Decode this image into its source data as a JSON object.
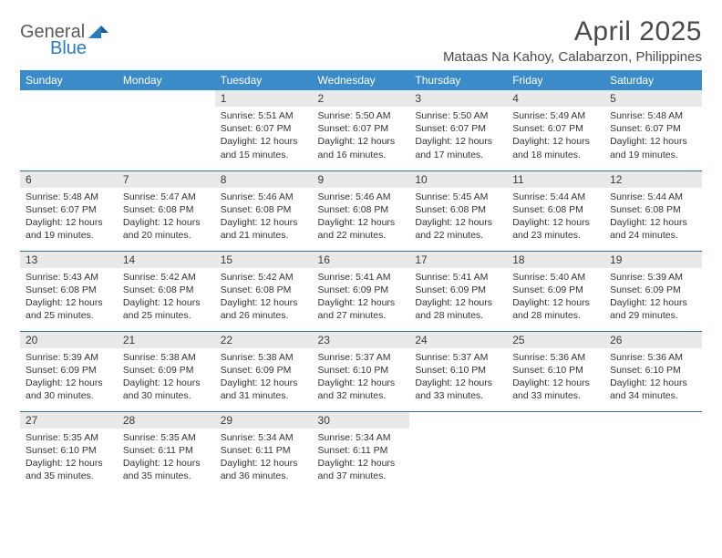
{
  "brand": {
    "general": "General",
    "blue": "Blue"
  },
  "title": "April 2025",
  "location": "Mataas Na Kahoy, Calabarzon, Philippines",
  "colors": {
    "header_bg": "#3b8bc8",
    "header_text": "#ffffff",
    "daynum_bg": "#e9e9e9",
    "rule": "#3b6fa0",
    "brand_general": "#5a5a5a",
    "brand_blue": "#2b7bbf",
    "body_text": "#333333"
  },
  "daynames": [
    "Sunday",
    "Monday",
    "Tuesday",
    "Wednesday",
    "Thursday",
    "Friday",
    "Saturday"
  ],
  "weeks": [
    [
      {
        "n": "",
        "sr": "",
        "ss": "",
        "dl1": "",
        "dl2": ""
      },
      {
        "n": "",
        "sr": "",
        "ss": "",
        "dl1": "",
        "dl2": ""
      },
      {
        "n": "1",
        "sr": "Sunrise: 5:51 AM",
        "ss": "Sunset: 6:07 PM",
        "dl1": "Daylight: 12 hours",
        "dl2": "and 15 minutes."
      },
      {
        "n": "2",
        "sr": "Sunrise: 5:50 AM",
        "ss": "Sunset: 6:07 PM",
        "dl1": "Daylight: 12 hours",
        "dl2": "and 16 minutes."
      },
      {
        "n": "3",
        "sr": "Sunrise: 5:50 AM",
        "ss": "Sunset: 6:07 PM",
        "dl1": "Daylight: 12 hours",
        "dl2": "and 17 minutes."
      },
      {
        "n": "4",
        "sr": "Sunrise: 5:49 AM",
        "ss": "Sunset: 6:07 PM",
        "dl1": "Daylight: 12 hours",
        "dl2": "and 18 minutes."
      },
      {
        "n": "5",
        "sr": "Sunrise: 5:48 AM",
        "ss": "Sunset: 6:07 PM",
        "dl1": "Daylight: 12 hours",
        "dl2": "and 19 minutes."
      }
    ],
    [
      {
        "n": "6",
        "sr": "Sunrise: 5:48 AM",
        "ss": "Sunset: 6:07 PM",
        "dl1": "Daylight: 12 hours",
        "dl2": "and 19 minutes."
      },
      {
        "n": "7",
        "sr": "Sunrise: 5:47 AM",
        "ss": "Sunset: 6:08 PM",
        "dl1": "Daylight: 12 hours",
        "dl2": "and 20 minutes."
      },
      {
        "n": "8",
        "sr": "Sunrise: 5:46 AM",
        "ss": "Sunset: 6:08 PM",
        "dl1": "Daylight: 12 hours",
        "dl2": "and 21 minutes."
      },
      {
        "n": "9",
        "sr": "Sunrise: 5:46 AM",
        "ss": "Sunset: 6:08 PM",
        "dl1": "Daylight: 12 hours",
        "dl2": "and 22 minutes."
      },
      {
        "n": "10",
        "sr": "Sunrise: 5:45 AM",
        "ss": "Sunset: 6:08 PM",
        "dl1": "Daylight: 12 hours",
        "dl2": "and 22 minutes."
      },
      {
        "n": "11",
        "sr": "Sunrise: 5:44 AM",
        "ss": "Sunset: 6:08 PM",
        "dl1": "Daylight: 12 hours",
        "dl2": "and 23 minutes."
      },
      {
        "n": "12",
        "sr": "Sunrise: 5:44 AM",
        "ss": "Sunset: 6:08 PM",
        "dl1": "Daylight: 12 hours",
        "dl2": "and 24 minutes."
      }
    ],
    [
      {
        "n": "13",
        "sr": "Sunrise: 5:43 AM",
        "ss": "Sunset: 6:08 PM",
        "dl1": "Daylight: 12 hours",
        "dl2": "and 25 minutes."
      },
      {
        "n": "14",
        "sr": "Sunrise: 5:42 AM",
        "ss": "Sunset: 6:08 PM",
        "dl1": "Daylight: 12 hours",
        "dl2": "and 25 minutes."
      },
      {
        "n": "15",
        "sr": "Sunrise: 5:42 AM",
        "ss": "Sunset: 6:08 PM",
        "dl1": "Daylight: 12 hours",
        "dl2": "and 26 minutes."
      },
      {
        "n": "16",
        "sr": "Sunrise: 5:41 AM",
        "ss": "Sunset: 6:09 PM",
        "dl1": "Daylight: 12 hours",
        "dl2": "and 27 minutes."
      },
      {
        "n": "17",
        "sr": "Sunrise: 5:41 AM",
        "ss": "Sunset: 6:09 PM",
        "dl1": "Daylight: 12 hours",
        "dl2": "and 28 minutes."
      },
      {
        "n": "18",
        "sr": "Sunrise: 5:40 AM",
        "ss": "Sunset: 6:09 PM",
        "dl1": "Daylight: 12 hours",
        "dl2": "and 28 minutes."
      },
      {
        "n": "19",
        "sr": "Sunrise: 5:39 AM",
        "ss": "Sunset: 6:09 PM",
        "dl1": "Daylight: 12 hours",
        "dl2": "and 29 minutes."
      }
    ],
    [
      {
        "n": "20",
        "sr": "Sunrise: 5:39 AM",
        "ss": "Sunset: 6:09 PM",
        "dl1": "Daylight: 12 hours",
        "dl2": "and 30 minutes."
      },
      {
        "n": "21",
        "sr": "Sunrise: 5:38 AM",
        "ss": "Sunset: 6:09 PM",
        "dl1": "Daylight: 12 hours",
        "dl2": "and 30 minutes."
      },
      {
        "n": "22",
        "sr": "Sunrise: 5:38 AM",
        "ss": "Sunset: 6:09 PM",
        "dl1": "Daylight: 12 hours",
        "dl2": "and 31 minutes."
      },
      {
        "n": "23",
        "sr": "Sunrise: 5:37 AM",
        "ss": "Sunset: 6:10 PM",
        "dl1": "Daylight: 12 hours",
        "dl2": "and 32 minutes."
      },
      {
        "n": "24",
        "sr": "Sunrise: 5:37 AM",
        "ss": "Sunset: 6:10 PM",
        "dl1": "Daylight: 12 hours",
        "dl2": "and 33 minutes."
      },
      {
        "n": "25",
        "sr": "Sunrise: 5:36 AM",
        "ss": "Sunset: 6:10 PM",
        "dl1": "Daylight: 12 hours",
        "dl2": "and 33 minutes."
      },
      {
        "n": "26",
        "sr": "Sunrise: 5:36 AM",
        "ss": "Sunset: 6:10 PM",
        "dl1": "Daylight: 12 hours",
        "dl2": "and 34 minutes."
      }
    ],
    [
      {
        "n": "27",
        "sr": "Sunrise: 5:35 AM",
        "ss": "Sunset: 6:10 PM",
        "dl1": "Daylight: 12 hours",
        "dl2": "and 35 minutes."
      },
      {
        "n": "28",
        "sr": "Sunrise: 5:35 AM",
        "ss": "Sunset: 6:11 PM",
        "dl1": "Daylight: 12 hours",
        "dl2": "and 35 minutes."
      },
      {
        "n": "29",
        "sr": "Sunrise: 5:34 AM",
        "ss": "Sunset: 6:11 PM",
        "dl1": "Daylight: 12 hours",
        "dl2": "and 36 minutes."
      },
      {
        "n": "30",
        "sr": "Sunrise: 5:34 AM",
        "ss": "Sunset: 6:11 PM",
        "dl1": "Daylight: 12 hours",
        "dl2": "and 37 minutes."
      },
      {
        "n": "",
        "sr": "",
        "ss": "",
        "dl1": "",
        "dl2": ""
      },
      {
        "n": "",
        "sr": "",
        "ss": "",
        "dl1": "",
        "dl2": ""
      },
      {
        "n": "",
        "sr": "",
        "ss": "",
        "dl1": "",
        "dl2": ""
      }
    ]
  ]
}
